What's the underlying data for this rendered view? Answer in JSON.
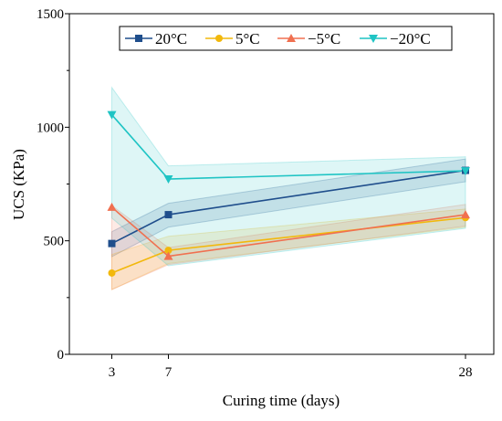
{
  "chart_data": {
    "type": "line",
    "xlabel": "Curing time (days)",
    "ylabel": "UCS (KPa)",
    "x": [
      3,
      7,
      28
    ],
    "xticks": [
      "3",
      "7",
      "28"
    ],
    "xlim": [
      0,
      30
    ],
    "ylim": [
      0,
      1500
    ],
    "yticks": [
      0,
      500,
      1000,
      1500
    ],
    "legend_position": "top",
    "grid": false,
    "series": [
      {
        "name": "20°C",
        "color": "#1f4e8c",
        "marker": "square",
        "values": [
          488,
          615,
          810
        ],
        "band_lower": [
          430,
          560,
          760
        ],
        "band_upper": [
          540,
          665,
          860
        ]
      },
      {
        "name": "5°C",
        "color": "#f2b80c",
        "marker": "circle",
        "values": [
          358,
          458,
          602
        ],
        "band_lower": [
          285,
          400,
          560
        ],
        "band_upper": [
          440,
          520,
          640
        ]
      },
      {
        "name": "−5°C",
        "color": "#f07050",
        "marker": "triangle-up",
        "values": [
          648,
          432,
          615
        ],
        "band_lower": [
          285,
          395,
          565
        ],
        "band_upper": [
          655,
          470,
          660
        ]
      },
      {
        "name": "−20°C",
        "color": "#1fc4c4",
        "marker": "triangle-down",
        "values": [
          1055,
          772,
          808
        ],
        "band_lower": [
          600,
          390,
          555
        ],
        "band_upper": [
          1175,
          830,
          870
        ]
      }
    ]
  }
}
